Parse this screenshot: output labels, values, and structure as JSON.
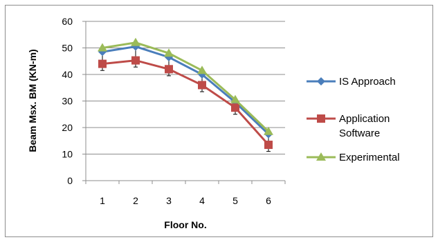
{
  "chart_data": {
    "type": "line",
    "xlabel": "Floor No.",
    "ylabel": "Beam Msx. BM (KN-m)",
    "ylim": [
      0,
      60
    ],
    "yticks": [
      "0",
      "10",
      "20",
      "30",
      "40",
      "50",
      "60"
    ],
    "categories": [
      "1",
      "2",
      "3",
      "4",
      "5",
      "6"
    ],
    "grid": "horizontal",
    "legend_position": "right",
    "series": [
      {
        "name": "IS Approach",
        "values": [
          48.5,
          50.5,
          46.5,
          40,
          29.5,
          17.5
        ],
        "color": "#4a7ebb",
        "marker": "diamond"
      },
      {
        "name": "Application Software",
        "name_lines": [
          "Application",
          "Software"
        ],
        "values": [
          44,
          45.3,
          42,
          36,
          27.5,
          13.5
        ],
        "color": "#be4b48",
        "marker": "square"
      },
      {
        "name": "Experimental",
        "values": [
          50,
          52,
          48,
          41.5,
          30.5,
          18.5
        ],
        "color": "#9bbb59",
        "marker": "triangle"
      }
    ]
  }
}
